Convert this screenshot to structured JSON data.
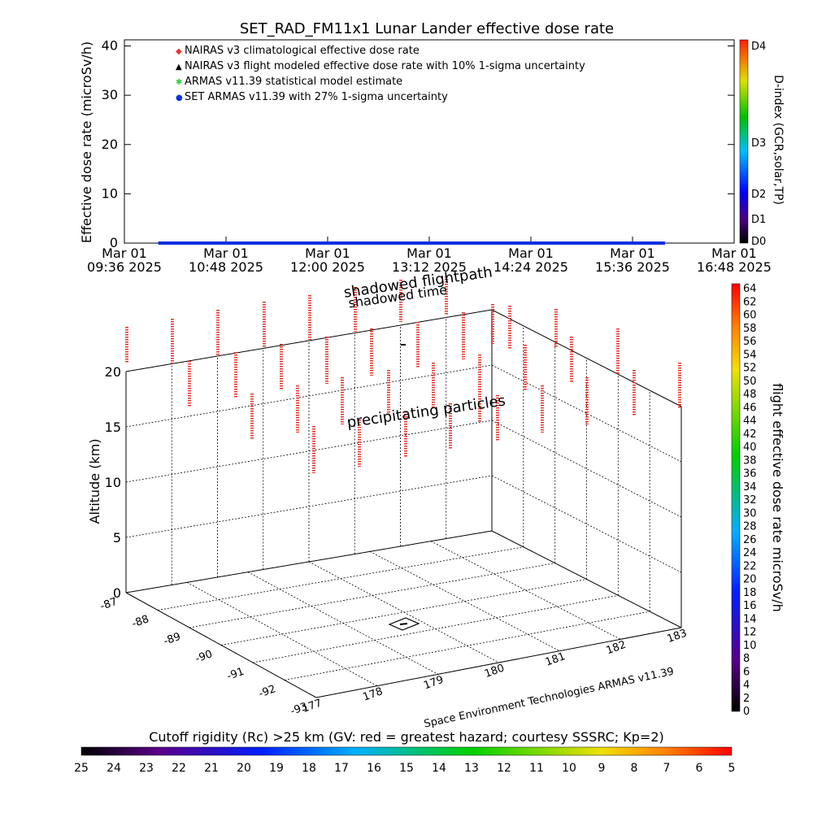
{
  "title": "SET_RAD_FM11x1  Lunar Lander effective dose rate",
  "top_chart": {
    "ylabel": "Effective dose rate (microSv/h)",
    "y_ticks": [
      "0",
      "10",
      "20",
      "30",
      "40"
    ],
    "x_ticks": [
      {
        "date": "Mar 01",
        "time": "09:36 2025"
      },
      {
        "date": "Mar 01",
        "time": "10:48 2025"
      },
      {
        "date": "Mar 01",
        "time": "12:00 2025"
      },
      {
        "date": "Mar 01",
        "time": "13:12 2025"
      },
      {
        "date": "Mar 01",
        "time": "14:24 2025"
      },
      {
        "date": "Mar 01",
        "time": "15:36 2025"
      },
      {
        "date": "Mar 01",
        "time": "16:48 2025"
      }
    ],
    "legend": [
      {
        "symbol": "◆",
        "color": "#e8322b",
        "label": "NAIRAS v3 climatological effective dose rate"
      },
      {
        "symbol": "▲",
        "color": "#000000",
        "label": "NAIRAS v3 flight modeled effective dose rate with 10% 1-sigma uncertainty"
      },
      {
        "symbol": "✱",
        "color": "#2ecc40",
        "label": "ARMAS v11.39 statistical model estimate"
      },
      {
        "symbol": "●",
        "color": "#1030e0",
        "label": "SET ARMAS v11.39 with 27% 1-sigma uncertainty"
      }
    ],
    "dindex_label": "D-index (GCR,solar,TP)",
    "dindex_ticks": [
      "D0",
      "D1",
      "D2",
      "D3",
      "D4"
    ]
  },
  "chart_data": [
    {
      "type": "line",
      "title": "SET_RAD_FM11x1  Lunar Lander effective dose rate",
      "ylabel": "Effective dose rate (microSv/h)",
      "ylim": [
        0,
        40
      ],
      "xlim": [
        "2025-03-01 09:36",
        "2025-03-01 16:48"
      ],
      "series": [
        {
          "name": "SET ARMAS v11.39 with 27% 1-sigma uncertainty",
          "x": [
            "2025-03-01 10:00",
            "2025-03-01 15:59"
          ],
          "values": [
            0,
            0
          ]
        }
      ]
    },
    {
      "type": "scatter",
      "zlabel": "Altitude (km)",
      "zlim": [
        0,
        20
      ],
      "lat_ticks": [
        "-87",
        "-88",
        "-89",
        "-90",
        "-91",
        "-92",
        "-93"
      ],
      "lon_ticks": [
        "177",
        "178",
        "179",
        "180",
        "181",
        "182",
        "183"
      ],
      "z_ticks": [
        "0",
        "5",
        "10",
        "15",
        "20"
      ],
      "annotations": [
        "shadowed flightpath",
        "shadowed time",
        "precipitating particles"
      ]
    }
  ],
  "annotations": {
    "shadowed_flightpath": "shadowed flightpath",
    "shadowed_time": "shadowed time",
    "precipitating": "precipitating particles",
    "credit": "Space Environment Technologies ARMAS v11.39"
  },
  "right_colorbar": {
    "label": "flight effective dose rate microSv/h",
    "ticks": [
      "0",
      "2",
      "4",
      "6",
      "8",
      "10",
      "12",
      "14",
      "16",
      "18",
      "20",
      "22",
      "24",
      "26",
      "28",
      "30",
      "32",
      "34",
      "36",
      "38",
      "40",
      "42",
      "44",
      "46",
      "48",
      "50",
      "52",
      "54",
      "56",
      "58",
      "60",
      "62",
      "64"
    ]
  },
  "bottom_colorbar": {
    "label": "Cutoff rigidity (Rc) >25 km (GV: red = greatest hazard; courtesy SSSRC; Kp=2)",
    "ticks": [
      "25",
      "24",
      "23",
      "22",
      "21",
      "20",
      "19",
      "18",
      "17",
      "16",
      "15",
      "14",
      "13",
      "12",
      "11",
      "10",
      "9",
      "8",
      "7",
      "6",
      "5"
    ]
  },
  "colors": {
    "particle_red": "#e8322b",
    "series_blue": "#1030e0"
  }
}
